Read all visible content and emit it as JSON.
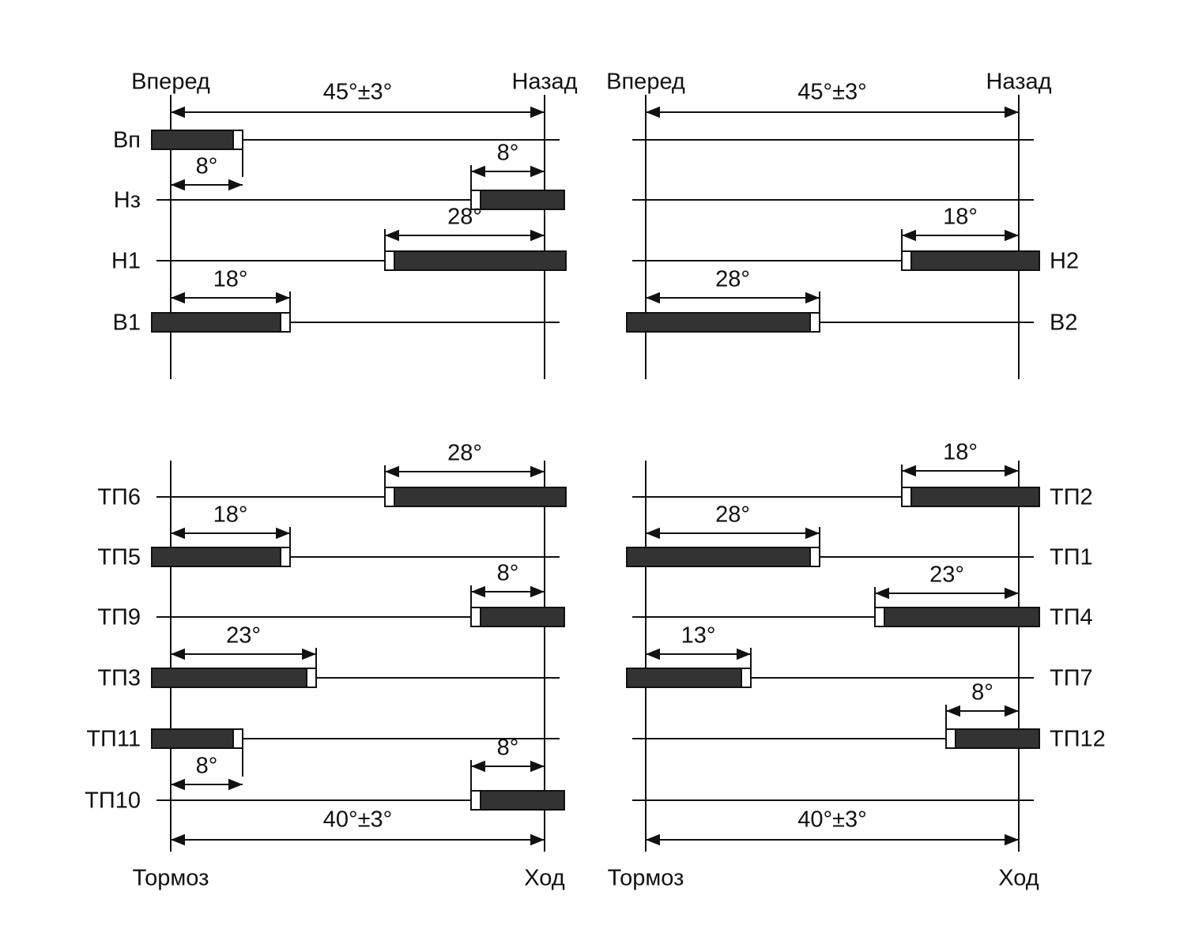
{
  "panels": [
    {
      "left_end": "Вперед",
      "right_end": "Назад",
      "span": "45°±3°",
      "rows": [
        {
          "label": "Вп",
          "angle": "8°"
        },
        {
          "label": "Нз",
          "angle": "8°"
        },
        {
          "label": "Н1",
          "angle": "28°"
        },
        {
          "label": "В1",
          "angle": "18°"
        }
      ]
    },
    {
      "left_end": "Вперед",
      "right_end": "Назад",
      "span": "45°±3°",
      "rows": [
        {
          "label": "Н2",
          "angle": "18°"
        },
        {
          "label": "В2",
          "angle": "28°"
        }
      ]
    },
    {
      "left_end": "Тормоз",
      "right_end": "Ход",
      "span": "40°±3°",
      "rows": [
        {
          "label": "ТП6",
          "angle": "28°"
        },
        {
          "label": "ТП5",
          "angle": "18°"
        },
        {
          "label": "ТП9",
          "angle": "8°"
        },
        {
          "label": "ТП3",
          "angle": "23°"
        },
        {
          "label": "ТП11",
          "angle": "8°"
        },
        {
          "label": "ТП10",
          "angle": "8°"
        }
      ]
    },
    {
      "left_end": "Тормоз",
      "right_end": "Ход",
      "span": "40°±3°",
      "rows": [
        {
          "label": "ТП2",
          "angle": "18°"
        },
        {
          "label": "ТП1",
          "angle": "28°"
        },
        {
          "label": "ТП4",
          "angle": "23°"
        },
        {
          "label": "ТП7",
          "angle": "13°"
        },
        {
          "label": "ТП12",
          "angle": "8°"
        }
      ]
    }
  ]
}
